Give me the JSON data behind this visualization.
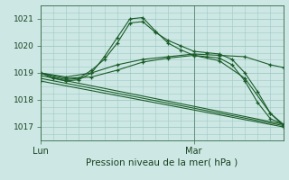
{
  "title": "",
  "xlabel": "Pression niveau de la mer( hPa )",
  "ylim": [
    1016.5,
    1021.5
  ],
  "xlim": [
    0,
    38
  ],
  "yticks": [
    1017,
    1018,
    1019,
    1020,
    1021
  ],
  "xtick_positions": [
    0,
    24
  ],
  "xtick_labels": [
    "Lun",
    "Mar"
  ],
  "vline_x": 24,
  "bg_color": "#cde8e4",
  "grid_color": "#a0c8c4",
  "line_color": "#1a5c28",
  "lines": [
    {
      "x": [
        0,
        2,
        4,
        6,
        8,
        10,
        12,
        14,
        16,
        18,
        20,
        22,
        24,
        26,
        28,
        30,
        32,
        34,
        36,
        38
      ],
      "y": [
        1019.0,
        1018.85,
        1018.75,
        1018.8,
        1019.1,
        1019.5,
        1020.1,
        1020.85,
        1020.9,
        1020.5,
        1020.2,
        1020.0,
        1019.8,
        1019.75,
        1019.7,
        1019.5,
        1019.0,
        1018.3,
        1017.5,
        1017.1
      ]
    },
    {
      "x": [
        0,
        2,
        4,
        6,
        8,
        10,
        12,
        14,
        16,
        18,
        20,
        22,
        24,
        26,
        28,
        30,
        32,
        34,
        36,
        38
      ],
      "y": [
        1019.0,
        1018.8,
        1018.7,
        1018.75,
        1019.0,
        1019.6,
        1020.3,
        1021.0,
        1021.05,
        1020.55,
        1020.1,
        1019.85,
        1019.65,
        1019.6,
        1019.55,
        1019.3,
        1018.7,
        1017.9,
        1017.3,
        1017.1
      ]
    },
    {
      "x": [
        0,
        4,
        8,
        12,
        16,
        20,
        24,
        28,
        32,
        36,
        38
      ],
      "y": [
        1019.0,
        1018.85,
        1019.0,
        1019.3,
        1019.5,
        1019.6,
        1019.7,
        1019.65,
        1019.6,
        1019.3,
        1019.2
      ]
    },
    {
      "x": [
        0,
        4,
        8,
        12,
        16,
        20,
        24,
        28,
        32,
        36,
        38
      ],
      "y": [
        1019.0,
        1018.8,
        1018.85,
        1019.1,
        1019.4,
        1019.55,
        1019.65,
        1019.45,
        1018.8,
        1017.5,
        1017.05
      ]
    },
    {
      "x": [
        0,
        38
      ],
      "y": [
        1018.9,
        1017.1
      ]
    },
    {
      "x": [
        0,
        38
      ],
      "y": [
        1018.8,
        1017.05
      ]
    },
    {
      "x": [
        0,
        38
      ],
      "y": [
        1018.7,
        1017.0
      ]
    }
  ]
}
